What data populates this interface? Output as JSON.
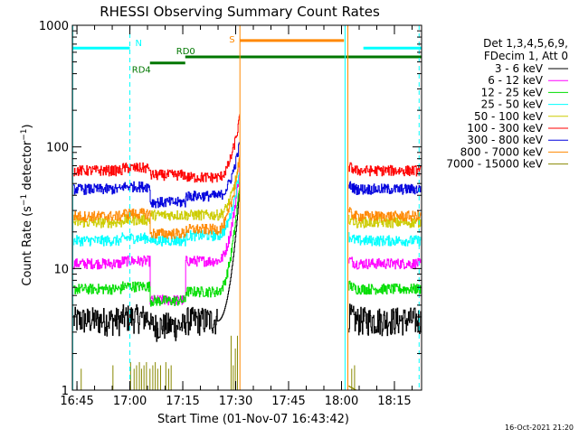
{
  "chart_data": {
    "type": "line",
    "title": "RHESSI Observing Summary Count Rates",
    "xlabel": "Start Time (01-Nov-07 16:43:42)",
    "ylabel": "Count Rate (s⁻¹ detector⁻¹)",
    "ylabel_parts": {
      "main": "Count Rate (s",
      "exp1": "−1",
      "mid": " detector",
      "exp2": "−1",
      "end": ")"
    },
    "y_scale": "log",
    "ylim": [
      1,
      1000
    ],
    "xlim_minutes_after_16_43_42": [
      0,
      99
    ],
    "x_ticks": [
      {
        "label": "16:45",
        "minutes": 1.3
      },
      {
        "label": "17:00",
        "minutes": 16.3
      },
      {
        "label": "17:15",
        "minutes": 31.3
      },
      {
        "label": "17:30",
        "minutes": 46.3
      },
      {
        "label": "17:45",
        "minutes": 61.3
      },
      {
        "label": "18:00",
        "minutes": 76.3
      },
      {
        "label": "18:15",
        "minutes": 91.3
      }
    ],
    "y_ticks": [
      {
        "label": "1",
        "value": 1
      },
      {
        "label": "10",
        "value": 10
      },
      {
        "label": "100",
        "value": 100
      },
      {
        "label": "1000",
        "value": 1000
      }
    ],
    "legend": {
      "position": "right",
      "header": [
        "Det 1,3,4,5,6,9,",
        "FDecim 1, Att 0"
      ]
    },
    "series": [
      {
        "name": "3 - 6 keV",
        "color": "#000000",
        "base": 3.7,
        "flare_peak": 50
      },
      {
        "name": "6 - 12 keV",
        "color": "#ff00ff",
        "base": 11,
        "flare_peak": 70
      },
      {
        "name": "12 - 25 keV",
        "color": "#00dd00",
        "base": 6.8,
        "flare_peak": 55
      },
      {
        "name": "25 - 50 keV",
        "color": "#00ffff",
        "base": 17,
        "flare_peak": 70
      },
      {
        "name": "50 - 100 keV",
        "color": "#cccc00",
        "base": 24,
        "flare_peak": 80
      },
      {
        "name": "100 - 300 keV",
        "color": "#ff0000",
        "base": 64,
        "flare_peak": 180
      },
      {
        "name": "300 - 800 keV",
        "color": "#0000dd",
        "base": 45,
        "flare_peak": 110
      },
      {
        "name": "800 - 7000 keV",
        "color": "#ff8800",
        "base": 27,
        "flare_peak": 90
      },
      {
        "name": "7000 - 15000 keV",
        "color": "#888800",
        "base": 1,
        "flare_peak": 3
      }
    ],
    "flags": [
      {
        "label": "N",
        "color": "#00ffff",
        "level": 650,
        "segments": [
          [
            0,
            16.3
          ],
          [
            82.5,
            99
          ]
        ]
      },
      {
        "label": "S",
        "color": "#ff8800",
        "level": 750,
        "segments": [
          [
            47.5,
            77
          ]
        ]
      },
      {
        "label": "RD0",
        "color": "#007700",
        "level": 550,
        "segments": [
          [
            32,
            99
          ]
        ]
      },
      {
        "label": "RD4",
        "color": "#007700",
        "level": 490,
        "segments": [
          [
            22,
            32
          ]
        ]
      }
    ],
    "orbit_lines": [
      {
        "color": "#00ffff",
        "style": "dashed",
        "minutes": 16.3
      },
      {
        "color": "#00ffff",
        "style": "solid",
        "minutes": 0.1
      },
      {
        "color": "#ff8800",
        "style": "solid",
        "minutes": 47.5
      },
      {
        "color": "#00ffff",
        "style": "solid",
        "minutes": 77.3
      },
      {
        "color": "#ff8800",
        "style": "solid",
        "minutes": 78.1
      },
      {
        "color": "#00ffff",
        "style": "dashed",
        "minutes": 98.3
      }
    ],
    "gaps": [
      [
        47.5,
        78.3
      ]
    ]
  },
  "footer": {
    "timestamp": "16-Oct-2021 21:20"
  }
}
